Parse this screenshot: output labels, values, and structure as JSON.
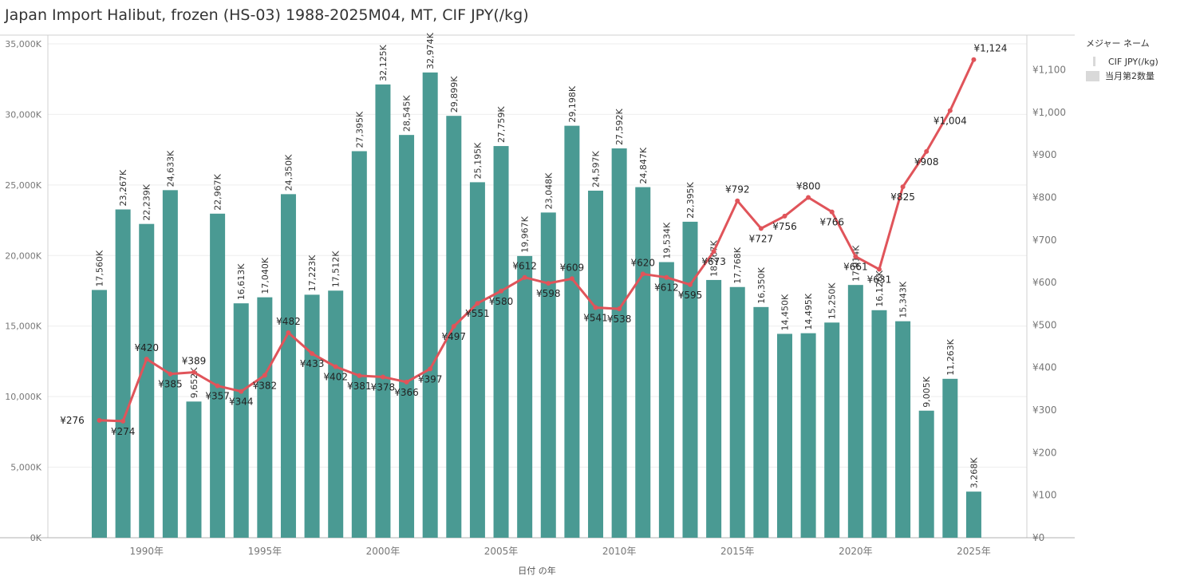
{
  "title": "Japan Import Halibut, frozen (HS-03) 1988-2025M04, MT, CIF JPY(/kg)",
  "colors": {
    "bar": "#4a9a93",
    "line": "#e0545a",
    "grid": "#eeeeee",
    "axis": "#888888"
  },
  "legend": {
    "title": "メジャー ネーム",
    "items": [
      {
        "label": "CIF JPY(/kg)",
        "icon": "line-swatch-icon"
      },
      {
        "label": "当月第2数量",
        "icon": "box-swatch-icon"
      }
    ]
  },
  "chart_data": {
    "type": "bar",
    "xlabel": "日付 の年",
    "x_tick_labels": [
      "1990年",
      "1995年",
      "2000年",
      "2005年",
      "2010年",
      "2015年",
      "2020年",
      "2025年"
    ],
    "x_tick_years": [
      1990,
      1995,
      2000,
      2005,
      2010,
      2015,
      2020,
      2025
    ],
    "y_left": {
      "ticks": [
        0,
        5000,
        10000,
        15000,
        20000,
        25000,
        30000,
        35000
      ],
      "tick_labels": [
        "0K",
        "5,000K",
        "10,000K",
        "15,000K",
        "20,000K",
        "25,000K",
        "30,000K",
        "35,000K"
      ],
      "range": [
        0,
        35000
      ]
    },
    "y_right": {
      "ticks": [
        0,
        100,
        200,
        300,
        400,
        500,
        600,
        700,
        800,
        900,
        1000,
        1100
      ],
      "tick_labels": [
        "¥0",
        "¥100",
        "¥200",
        "¥300",
        "¥400",
        "¥500",
        "¥600",
        "¥700",
        "¥800",
        "¥900",
        "¥1,000",
        "¥1,100"
      ],
      "range": [
        0,
        1160
      ]
    },
    "years": [
      1988,
      1989,
      1990,
      1991,
      1992,
      1993,
      1994,
      1995,
      1996,
      1997,
      1998,
      1999,
      2000,
      2001,
      2002,
      2003,
      2004,
      2005,
      2006,
      2007,
      2008,
      2009,
      2010,
      2011,
      2012,
      2013,
      2014,
      2015,
      2016,
      2017,
      2018,
      2019,
      2020,
      2021,
      2022,
      2023,
      2024,
      2025
    ],
    "series": [
      {
        "name": "当月第2数量",
        "kind": "bar",
        "values": [
          17560,
          23267,
          22239,
          24633,
          9652,
          22967,
          16613,
          17040,
          24350,
          17223,
          17512,
          27395,
          32125,
          28545,
          32974,
          29899,
          25195,
          27759,
          19967,
          23048,
          29198,
          24597,
          27592,
          24847,
          19534,
          22395,
          18267,
          17768,
          16350,
          14450,
          14495,
          15250,
          17914,
          16126,
          15343,
          9005,
          11263,
          3268
        ],
        "labels": [
          "17,560K",
          "23,267K",
          "22,239K",
          "24,633K",
          "9,652K",
          "22,967K",
          "16,613K",
          "17,040K",
          "24,350K",
          "17,223K",
          "17,512K",
          "27,395K",
          "32,125K",
          "28,545K",
          "32,974K",
          "29,899K",
          "25,195K",
          "27,759K",
          "19,967K",
          "23,048K",
          "29,198K",
          "24,597K",
          "27,592K",
          "24,847K",
          "19,534K",
          "22,395K",
          "18,267K",
          "17,768K",
          "16,350K",
          "14,450K",
          "14,495K",
          "15,250K",
          "17,914K",
          "16,126K",
          "15,343K",
          "9,005K",
          "11,263K",
          "3,268K"
        ]
      },
      {
        "name": "CIF JPY(/kg)",
        "kind": "line",
        "values": [
          276,
          274,
          420,
          385,
          389,
          357,
          344,
          382,
          482,
          433,
          402,
          381,
          378,
          366,
          397,
          497,
          551,
          580,
          612,
          598,
          609,
          541,
          538,
          620,
          612,
          595,
          673,
          792,
          727,
          756,
          800,
          766,
          661,
          631,
          825,
          908,
          1004,
          1124
        ],
        "labels": [
          "¥276",
          "¥274",
          "¥420",
          "¥385",
          "¥389",
          "¥357",
          "¥344",
          "¥382",
          "¥482",
          "¥433",
          "¥402",
          "¥381",
          "¥378",
          "¥366",
          "¥397",
          "¥497",
          "¥551",
          "¥580",
          "¥612",
          "¥598",
          "¥609",
          "¥541",
          "¥538",
          "¥620",
          "¥612",
          "¥595",
          "¥673",
          "¥792",
          "¥727",
          "¥756",
          "¥800",
          "¥766",
          "¥661",
          "¥631",
          "¥825",
          "¥908",
          "¥1,004",
          "¥1,124"
        ]
      }
    ]
  }
}
